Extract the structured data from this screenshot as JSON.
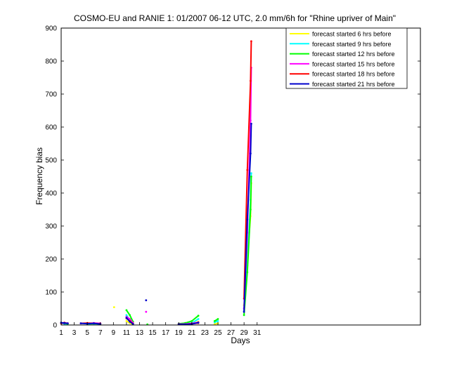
{
  "chart_data": {
    "type": "line",
    "title": "COSMO-EU and RANIE 1: 01/2007 06-12 UTC, 2.0 mm/6h for \"Rhine upriver of Main\"",
    "xlabel": "Days",
    "ylabel": "Frequency bias",
    "xlim": [
      1,
      56
    ],
    "ylim": [
      0,
      900
    ],
    "xticks": [
      1,
      3,
      5,
      7,
      9,
      11,
      13,
      15,
      17,
      19,
      21,
      23,
      25,
      27,
      29,
      31
    ],
    "yticks": [
      0,
      100,
      200,
      300,
      400,
      500,
      600,
      700,
      800,
      900
    ],
    "grid": false,
    "legend_position": "top-right",
    "series": [
      {
        "name": "forecast started 6 hrs before",
        "color": "#ffff00",
        "points": [
          [
            1,
            4
          ],
          [
            1.5,
            5
          ],
          [
            2,
            3
          ],
          [
            5,
            2
          ],
          [
            6,
            3
          ],
          [
            7,
            2
          ],
          [
            9.1,
            54
          ],
          [
            11,
            12
          ],
          [
            11.5,
            6
          ],
          [
            12,
            2
          ],
          [
            19,
            2
          ],
          [
            20,
            3
          ],
          [
            21,
            4
          ],
          [
            22,
            10
          ],
          [
            24.5,
            3
          ],
          [
            25,
            5
          ],
          [
            29,
            60
          ],
          [
            29.5,
            200
          ],
          [
            30,
            330
          ],
          [
            30.1,
            430
          ]
        ]
      },
      {
        "name": "forecast started 9 hrs before",
        "color": "#00ffff",
        "points": [
          [
            1,
            5
          ],
          [
            1.5,
            4
          ],
          [
            2,
            3
          ],
          [
            5,
            3
          ],
          [
            6,
            4
          ],
          [
            7,
            3
          ],
          [
            11,
            30
          ],
          [
            11.5,
            15
          ],
          [
            12,
            3
          ],
          [
            19,
            3
          ],
          [
            20,
            4
          ],
          [
            21,
            6
          ],
          [
            22,
            18
          ],
          [
            24.5,
            8
          ],
          [
            25,
            12
          ],
          [
            29,
            40
          ],
          [
            29.5,
            180
          ],
          [
            30,
            380
          ],
          [
            30.1,
            460
          ]
        ]
      },
      {
        "name": "forecast started 12 hrs before",
        "color": "#00ff00",
        "points": [
          [
            1,
            6
          ],
          [
            1.5,
            5
          ],
          [
            2,
            4
          ],
          [
            5,
            4
          ],
          [
            6,
            5
          ],
          [
            7,
            4
          ],
          [
            11,
            45
          ],
          [
            11.5,
            30
          ],
          [
            12,
            10
          ],
          [
            14.2,
            2
          ],
          [
            19,
            4
          ],
          [
            20,
            6
          ],
          [
            21,
            12
          ],
          [
            22,
            28
          ],
          [
            24.5,
            12
          ],
          [
            25,
            18
          ],
          [
            29,
            30
          ],
          [
            29.5,
            160
          ],
          [
            30,
            350
          ],
          [
            30.1,
            450
          ]
        ]
      },
      {
        "name": "forecast started 15 hrs before",
        "color": "#ff00ff",
        "points": [
          [
            1,
            5
          ],
          [
            1.5,
            6
          ],
          [
            2,
            5
          ],
          [
            5,
            5
          ],
          [
            6,
            6
          ],
          [
            7,
            5
          ],
          [
            11,
            25
          ],
          [
            11.5,
            18
          ],
          [
            12,
            6
          ],
          [
            14,
            40
          ],
          [
            19,
            3
          ],
          [
            20,
            3
          ],
          [
            21,
            5
          ],
          [
            22,
            8
          ],
          [
            29,
            50
          ],
          [
            29.5,
            280
          ],
          [
            30,
            620
          ],
          [
            30.1,
            780
          ]
        ]
      },
      {
        "name": "forecast started 18 hrs before",
        "color": "#ff0000",
        "points": [
          [
            1,
            6
          ],
          [
            1.5,
            7
          ],
          [
            2,
            5
          ],
          [
            4,
            5
          ],
          [
            5,
            6
          ],
          [
            6,
            5
          ],
          [
            7,
            4
          ],
          [
            11,
            20
          ],
          [
            11.5,
            12
          ],
          [
            12,
            4
          ],
          [
            19,
            2
          ],
          [
            20,
            2
          ],
          [
            21,
            4
          ],
          [
            22,
            6
          ],
          [
            29,
            80
          ],
          [
            29.5,
            470
          ],
          [
            30,
            740
          ],
          [
            30.1,
            860
          ]
        ]
      },
      {
        "name": "forecast started 21 hrs before",
        "color": "#0000cc",
        "points": [
          [
            1,
            7
          ],
          [
            1.5,
            6
          ],
          [
            2,
            5
          ],
          [
            4,
            5
          ],
          [
            5,
            4
          ],
          [
            6,
            5
          ],
          [
            7,
            3
          ],
          [
            11,
            22
          ],
          [
            11.5,
            10
          ],
          [
            12,
            3
          ],
          [
            14,
            75
          ],
          [
            19,
            2
          ],
          [
            20,
            2
          ],
          [
            21,
            3
          ],
          [
            22,
            7
          ],
          [
            29,
            40
          ],
          [
            29.5,
            320
          ],
          [
            30,
            520
          ],
          [
            30.1,
            610
          ]
        ]
      }
    ]
  }
}
